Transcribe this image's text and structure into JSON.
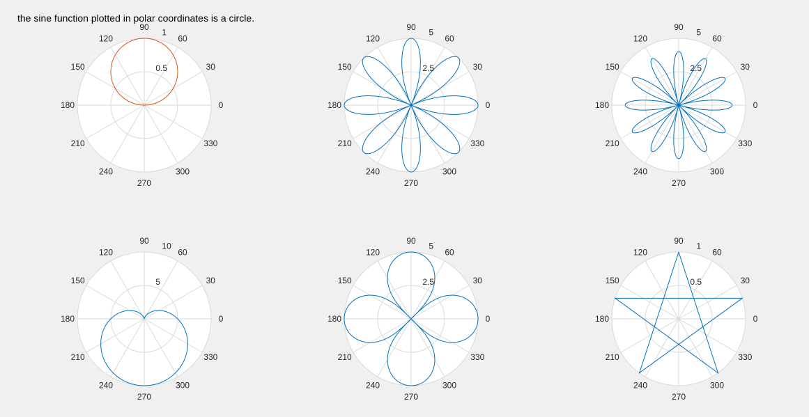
{
  "caption": "the sine function plotted in polar coordinates is a circle.",
  "colors": {
    "figure_background": "#f0f0f0",
    "axes_background": "#ffffff",
    "grid": "#dadada",
    "text": "#262626",
    "curve_blue": "#0072bd",
    "curve_orange": "#d95319"
  },
  "chart_data": [
    {
      "type": "line",
      "subtype": "polar",
      "theta_ticks": [
        "0",
        "30",
        "60",
        "90",
        "120",
        "150",
        "180",
        "210",
        "240",
        "270",
        "300",
        "330"
      ],
      "r_ticks": [
        "0.5",
        "1"
      ],
      "rlim": [
        0,
        1
      ],
      "grid": true,
      "series": [
        {
          "function": "r = sin(theta)",
          "theta_range_deg": [
            0,
            360
          ],
          "color": "#d95319"
        }
      ]
    },
    {
      "type": "line",
      "subtype": "polar",
      "theta_ticks": [
        "0",
        "30",
        "60",
        "90",
        "120",
        "150",
        "180",
        "210",
        "240",
        "270",
        "300",
        "330"
      ],
      "r_ticks": [
        "2.5",
        "5"
      ],
      "rlim": [
        0,
        5
      ],
      "grid": true,
      "series": [
        {
          "function": "r = 5*|cos(4*theta)|",
          "theta_range_deg": [
            0,
            360
          ],
          "color": "#0072bd"
        }
      ]
    },
    {
      "type": "line",
      "subtype": "polar",
      "theta_ticks": [
        "0",
        "30",
        "60",
        "90",
        "120",
        "150",
        "180",
        "210",
        "240",
        "270",
        "300",
        "330"
      ],
      "r_ticks": [
        "2.5",
        "5"
      ],
      "rlim": [
        0,
        5
      ],
      "grid": true,
      "series": [
        {
          "function": "r = 4*|cos(6*theta)|",
          "theta_range_deg": [
            0,
            360
          ],
          "color": "#0072bd"
        }
      ]
    },
    {
      "type": "line",
      "subtype": "polar",
      "theta_ticks": [
        "0",
        "30",
        "60",
        "90",
        "120",
        "150",
        "180",
        "210",
        "240",
        "270",
        "300",
        "330"
      ],
      "r_ticks": [
        "5",
        "10"
      ],
      "rlim": [
        0,
        10
      ],
      "grid": true,
      "series": [
        {
          "function": "r = 5*(1 - sin(theta))",
          "theta_range_deg": [
            0,
            360
          ],
          "color": "#0072bd"
        }
      ]
    },
    {
      "type": "line",
      "subtype": "polar",
      "theta_ticks": [
        "0",
        "30",
        "60",
        "90",
        "120",
        "150",
        "180",
        "210",
        "240",
        "270",
        "300",
        "330"
      ],
      "r_ticks": [
        "2.5",
        "5"
      ],
      "rlim": [
        0,
        5
      ],
      "grid": true,
      "series": [
        {
          "function": "r = 5*sqrt(|cos(2*theta)|)",
          "theta_range_deg": [
            0,
            360
          ],
          "color": "#0072bd"
        }
      ]
    },
    {
      "type": "line",
      "subtype": "polar",
      "theta_ticks": [
        "0",
        "30",
        "60",
        "90",
        "120",
        "150",
        "180",
        "210",
        "240",
        "270",
        "300",
        "330"
      ],
      "r_ticks": [
        "0.5",
        "1"
      ],
      "rlim": [
        0,
        1
      ],
      "grid": true,
      "series": [
        {
          "name": "",
          "color": "#0072bd",
          "points": [
            {
              "theta": 90,
              "r": 1
            },
            {
              "theta": 234,
              "r": 1
            },
            {
              "theta": 18,
              "r": 1
            },
            {
              "theta": 162,
              "r": 1
            },
            {
              "theta": 306,
              "r": 1
            },
            {
              "theta": 90,
              "r": 1
            }
          ]
        }
      ]
    }
  ]
}
